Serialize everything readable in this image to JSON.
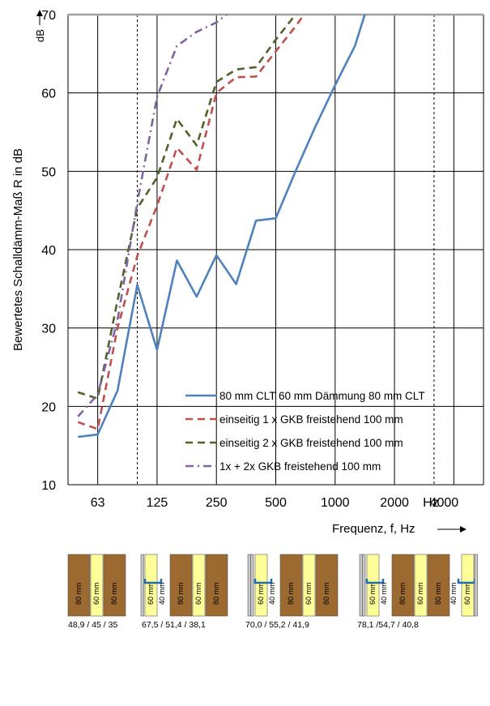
{
  "chart_data": {
    "type": "line",
    "ylabel": "Bewertetes Schalldämm-Maß R in dB",
    "ylabel_unit": "dB",
    "xlabel": "Frequenz, f, Hz",
    "hz_label": "Hz",
    "ylim": [
      10,
      70
    ],
    "y_ticks": [
      10,
      20,
      30,
      40,
      50,
      60,
      70
    ],
    "x_scale": "log (third-octave bands)",
    "x_tick_labels": [
      "63",
      "125",
      "250",
      "500",
      "1000",
      "2000",
      "4000"
    ],
    "x": [
      50,
      63,
      80,
      100,
      125,
      160,
      200,
      250,
      315,
      400,
      500,
      630,
      800,
      1000,
      1250,
      1600,
      2000,
      2500,
      3150,
      4000,
      5000
    ],
    "grid": true,
    "legend_position": "lower-right",
    "series": [
      {
        "name": "80 mm CLT  60 mm Dämmung 80 mm CLT",
        "color": "#4f81bd",
        "dash": "solid",
        "values": [
          16.1,
          16.4,
          22.0,
          35.5,
          27.2,
          38.6,
          34.0,
          39.3,
          35.6,
          43.7,
          44.0,
          50.0,
          55.7,
          61.0,
          66.0,
          74.0,
          null,
          null,
          null,
          null,
          null
        ]
      },
      {
        "name": "einseitig 1 x GKB freistehend 100 mm",
        "color": "#c0504d",
        "dash": "dash",
        "values": [
          18.0,
          17.1,
          30.0,
          39.2,
          45.6,
          53.0,
          50.2,
          60.0,
          62.0,
          62.1,
          65.3,
          68.5,
          72.0,
          null,
          null,
          null,
          null,
          null,
          null,
          null,
          null
        ]
      },
      {
        "name": "einseitig 2 x  GKB freistehend 100 mm",
        "color": "#4f6228",
        "dash": "dash",
        "values": [
          21.8,
          21.0,
          33.5,
          45.3,
          49.2,
          56.7,
          53.3,
          61.4,
          63.0,
          63.3,
          66.8,
          70.0,
          73.0,
          null,
          null,
          null,
          null,
          null,
          null,
          null,
          null
        ]
      },
      {
        "name": "1x + 2x  GKB freistehend 100 mm",
        "color": "#8064a2",
        "dash": "dashdot",
        "values": [
          18.7,
          21.5,
          31.0,
          46.0,
          59.5,
          66.0,
          67.8,
          69.0,
          71.0,
          null,
          null,
          null,
          null,
          null,
          null,
          null,
          null,
          null,
          null,
          null,
          null
        ]
      }
    ]
  },
  "cross_sections": [
    {
      "layer_labels": [
        "80 mm",
        "60 mm",
        "80 mm"
      ],
      "result": "48,9 / 45 / 35"
    },
    {
      "layer_labels": [
        "60 mm",
        "40 mm",
        "80 mm",
        "60 mm",
        "80 mm"
      ],
      "result": "67,5 / 51,4 / 38,1"
    },
    {
      "layer_labels": [
        "60 mm",
        "40 mm",
        "80 mm",
        "60 mm",
        "80 mm"
      ],
      "result": "70,0 / 55,2 / 41,9"
    },
    {
      "layer_labels": [
        "60 mm",
        "40 mm",
        "80 mm",
        "60 mm",
        "80 mm",
        "40 mm",
        "60 mm"
      ],
      "result": "78,1 /54,7 / 40,8"
    }
  ],
  "colors": {
    "clt": "#9c6a30",
    "insulation": "#ffff99",
    "gkb": "#c8c8c8",
    "profile": "#1f6fb0"
  }
}
